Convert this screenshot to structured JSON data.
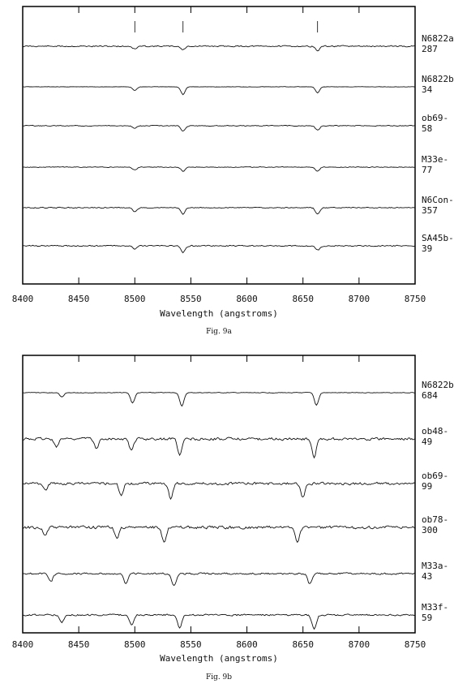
{
  "chart_data": [
    {
      "type": "line",
      "caption": "Fig. 9a",
      "xlabel": "Wavelength (angstroms)",
      "xlim": [
        8400,
        8750
      ],
      "xticks": [
        8400,
        8450,
        8500,
        8550,
        8600,
        8650,
        8700,
        8750
      ],
      "tick_labels": [
        "8400",
        "8450",
        "8500",
        "8550",
        "8600",
        "8650",
        "8700",
        "8750"
      ],
      "markers": [
        8500,
        8543,
        8663
      ],
      "series": [
        {
          "name": "N6822a 287",
          "label_lines": [
            "N6822a",
            "287"
          ],
          "lines": [
            [
              8500,
              0.35
            ],
            [
              8543,
              0.45
            ],
            [
              8663,
              0.55
            ]
          ],
          "noise": 0.14
        },
        {
          "name": "N6822b 34",
          "label_lines": [
            "N6822b",
            "34"
          ],
          "lines": [
            [
              8500,
              0.45
            ],
            [
              8543,
              0.95
            ],
            [
              8663,
              0.75
            ]
          ],
          "noise": 0.05
        },
        {
          "name": "ob69-58",
          "label_lines": [
            "ob69-",
            "58"
          ],
          "lines": [
            [
              8500,
              0.35
            ],
            [
              8543,
              0.65
            ],
            [
              8663,
              0.55
            ]
          ],
          "noise": 0.09
        },
        {
          "name": "M33e-77",
          "label_lines": [
            "M33e-",
            "77"
          ],
          "lines": [
            [
              8500,
              0.35
            ],
            [
              8543,
              0.5
            ],
            [
              8663,
              0.5
            ]
          ],
          "noise": 0.08
        },
        {
          "name": "N6Con-357",
          "label_lines": [
            "N6Con-",
            "357"
          ],
          "lines": [
            [
              8500,
              0.5
            ],
            [
              8543,
              0.85
            ],
            [
              8663,
              0.8
            ]
          ],
          "noise": 0.1
        },
        {
          "name": "SA45b-39",
          "label_lines": [
            "SA45b-",
            "39"
          ],
          "lines": [
            [
              8500,
              0.45
            ],
            [
              8543,
              0.8
            ],
            [
              8663,
              0.55
            ]
          ],
          "noise": 0.13
        }
      ]
    },
    {
      "type": "line",
      "caption": "Fig. 9b",
      "xlabel": "Wavelength (angstroms)",
      "xlim": [
        8400,
        8750
      ],
      "xticks": [
        8400,
        8450,
        8500,
        8550,
        8600,
        8650,
        8700,
        8750
      ],
      "tick_labels": [
        "8400",
        "8450",
        "8500",
        "8550",
        "8600",
        "8650",
        "8700",
        "8750"
      ],
      "markers": [],
      "series": [
        {
          "name": "N6822b 684",
          "label_lines": [
            "N6822b",
            "684"
          ],
          "lines": [
            [
              8435,
              0.4
            ],
            [
              8498,
              0.9
            ],
            [
              8542,
              1.2
            ],
            [
              8662,
              1.1
            ]
          ],
          "noise": 0.05
        },
        {
          "name": "ob48-49",
          "label_lines": [
            "ob48-",
            "49"
          ],
          "lines": [
            [
              8430,
              0.7
            ],
            [
              8466,
              0.9
            ],
            [
              8497,
              1.1
            ],
            [
              8540,
              1.4
            ],
            [
              8660,
              1.6
            ]
          ],
          "noise": 0.2
        },
        {
          "name": "ob69-99",
          "label_lines": [
            "ob69-",
            "99"
          ],
          "lines": [
            [
              8420,
              0.6
            ],
            [
              8488,
              1.0
            ],
            [
              8532,
              1.3
            ],
            [
              8650,
              1.2
            ]
          ],
          "noise": 0.2
        },
        {
          "name": "ob78-300",
          "label_lines": [
            "ob78-",
            "300"
          ],
          "lines": [
            [
              8420,
              0.7
            ],
            [
              8484,
              1.0
            ],
            [
              8526,
              1.3
            ],
            [
              8645,
              1.2
            ]
          ],
          "noise": 0.22
        },
        {
          "name": "M33a-43",
          "label_lines": [
            "M33a-",
            "43"
          ],
          "lines": [
            [
              8425,
              0.7
            ],
            [
              8492,
              0.9
            ],
            [
              8535,
              1.1
            ],
            [
              8656,
              0.9
            ]
          ],
          "noise": 0.14
        },
        {
          "name": "M33f-59",
          "label_lines": [
            "M33f-",
            "59"
          ],
          "lines": [
            [
              8435,
              0.6
            ],
            [
              8497,
              0.9
            ],
            [
              8540,
              1.2
            ],
            [
              8660,
              1.3
            ]
          ],
          "noise": 0.13
        }
      ]
    }
  ]
}
